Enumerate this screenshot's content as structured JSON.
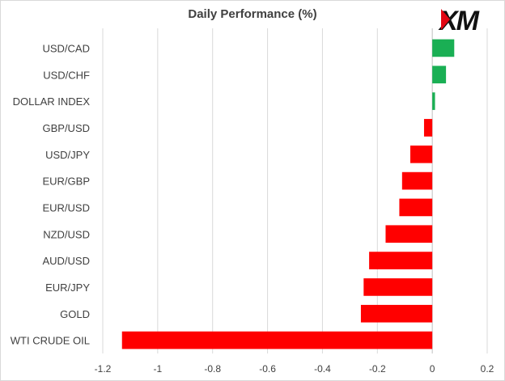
{
  "logo_text": "XM",
  "chart_data": {
    "type": "bar",
    "orientation": "horizontal",
    "title": "Daily Performance (%)",
    "xlabel": "",
    "ylabel": "",
    "categories": [
      "USD/CAD",
      "USD/CHF",
      "DOLLAR INDEX",
      "GBP/USD",
      "USD/JPY",
      "EUR/GBP",
      "EUR/USD",
      "NZD/USD",
      "AUD/USD",
      "EUR/JPY",
      "GOLD",
      "WTI CRUDE OIL"
    ],
    "values": [
      0.08,
      0.05,
      0.01,
      -0.03,
      -0.08,
      -0.11,
      -0.12,
      -0.17,
      -0.23,
      -0.25,
      -0.26,
      -1.13
    ],
    "xlim": [
      -1.2,
      0.2
    ],
    "xticks": [
      -1.2,
      -1,
      -0.8,
      -0.6,
      -0.4,
      -0.2,
      0,
      0.2
    ],
    "xtick_labels": [
      "-1.2",
      "-1",
      "-0.8",
      "-0.6",
      "-0.4",
      "-0.2",
      "0",
      "0.2"
    ],
    "grid": "vertical",
    "legend": "none",
    "colors": {
      "positive": "#1aaf54",
      "negative": "#ff0000",
      "grid": "#d9d9d9",
      "axis": "#bfbfbf",
      "text": "#404040"
    }
  }
}
